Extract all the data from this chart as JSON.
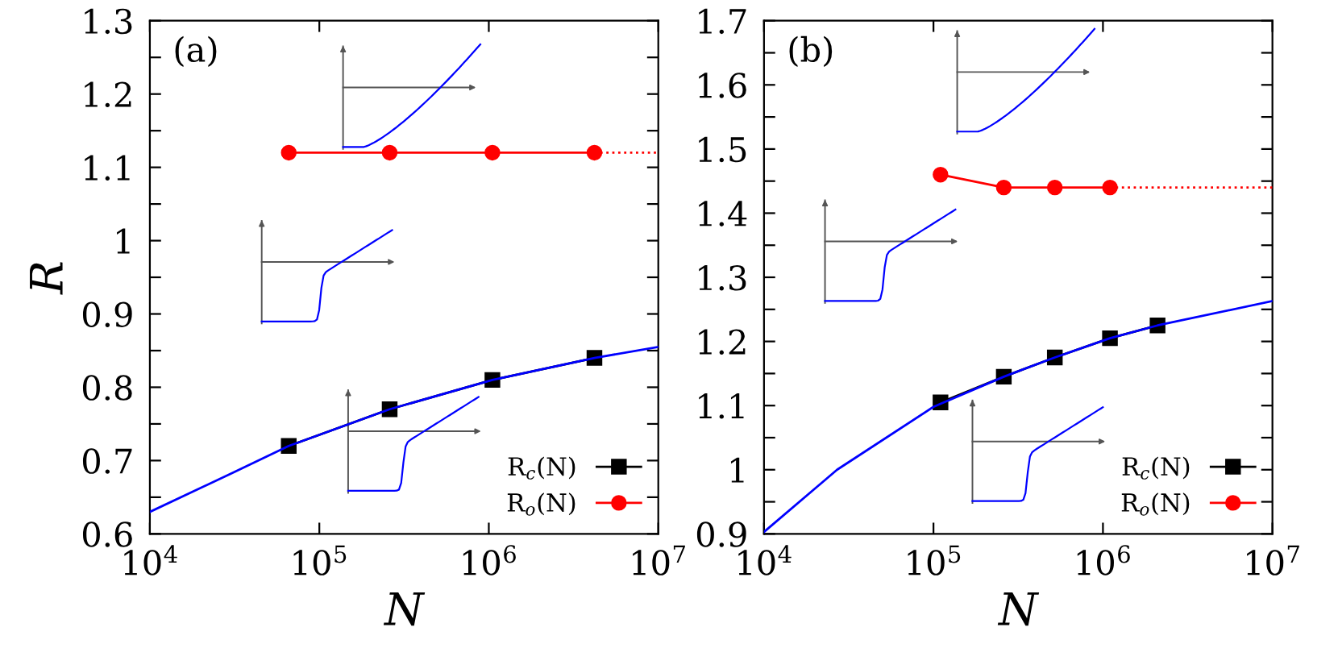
{
  "chart_data": [
    {
      "type": "line",
      "xlabel": "N",
      "ylabel": "R",
      "annotations": [
        "(a)"
      ],
      "log": "x",
      "grid": false,
      "legend": "bottom right",
      "xlim": [
        10000,
        10000000
      ],
      "xticks": [
        {
          "value": 10000,
          "label": "10$^{4}$"
        },
        {
          "value": 100000,
          "label": "10$^{5}$"
        },
        {
          "value": 1000000,
          "label": "10$^{6}$"
        },
        {
          "value": 10000000,
          "label": "10$^{7}$"
        }
      ],
      "ylim": [
        0.6,
        1.3
      ],
      "yticks": [
        0.6,
        {
          "value": 0.65,
          "label": null
        },
        0.7,
        {
          "value": 0.75,
          "label": null
        },
        0.8,
        {
          "value": 0.85,
          "label": null
        },
        0.9,
        {
          "value": 0.95,
          "label": null
        },
        1,
        {
          "value": 1.05,
          "label": null
        },
        1.1,
        {
          "value": 1.15,
          "label": null
        },
        1.2,
        {
          "value": 1.25,
          "label": null
        },
        1.3
      ],
      "series": [
        {
          "color": "#0000ff",
          "marker": "none",
          "line_style": "solid",
          "x": [
            10000,
            30000,
            66000,
            100000,
            260000,
            1050000,
            4200000,
            10000000
          ],
          "values": [
            0.63,
            0.682,
            0.72,
            0.735,
            0.77,
            0.81,
            0.84,
            0.855
          ]
        },
        {
          "name": "R$_{c}$(N)",
          "color": "#000000",
          "marker": "square",
          "line_style": "solid",
          "x": [
            66000,
            260000,
            1050000,
            4200000
          ],
          "values": [
            0.72,
            0.77,
            0.81,
            0.84
          ]
        },
        {
          "name": "R$_{o}$(N)",
          "color": "#ff0000",
          "marker": "circle",
          "line_style": "solid",
          "x": [
            66000,
            260000,
            1050000,
            4200000
          ],
          "values": [
            1.12,
            1.12,
            1.12,
            1.12
          ]
        },
        {
          "color": "#ff0000",
          "marker": "none",
          "line_style": "dotted",
          "x": [
            4200000,
            10000000
          ],
          "values": [
            1.12,
            1.12
          ]
        }
      ]
    },
    {
      "type": "line",
      "xlabel": "N",
      "annotations": [
        "(b)"
      ],
      "log": "x",
      "grid": false,
      "legend": "bottom right",
      "xlim": [
        10000,
        10000000
      ],
      "xticks": [
        {
          "value": 10000,
          "label": "10$^{4}$"
        },
        {
          "value": 100000,
          "label": "10$^{5}$"
        },
        {
          "value": 1000000,
          "label": "10$^{6}$"
        },
        {
          "value": 10000000,
          "label": "10$^{7}$"
        }
      ],
      "ylim": [
        0.9,
        1.7
      ],
      "yticks": [
        0.9,
        {
          "value": 0.95,
          "label": null
        },
        1,
        {
          "value": 1.05,
          "label": null
        },
        1.1,
        {
          "value": 1.15,
          "label": null
        },
        1.2,
        {
          "value": 1.25,
          "label": null
        },
        1.3,
        {
          "value": 1.35,
          "label": null
        },
        1.4,
        {
          "value": 1.45,
          "label": null
        },
        1.5,
        {
          "value": 1.55,
          "label": null
        },
        1.6,
        {
          "value": 1.65,
          "label": null
        },
        1.7
      ],
      "series": [
        {
          "color": "#0000ff",
          "marker": "none",
          "line_style": "solid",
          "x": [
            10000,
            27000,
            100000,
            260000,
            520000,
            1100000,
            2100000,
            10000000
          ],
          "values": [
            0.903,
            1.0,
            1.098,
            1.145,
            1.175,
            1.205,
            1.225,
            1.263
          ]
        },
        {
          "name": "R$_{c}$(N)",
          "color": "#000000",
          "marker": "square",
          "line_style": "solid",
          "x": [
            110000,
            260000,
            520000,
            1100000,
            2100000
          ],
          "values": [
            1.105,
            1.145,
            1.175,
            1.205,
            1.225
          ]
        },
        {
          "name": "R$_{o}$(N)",
          "color": "#ff0000",
          "marker": "circle",
          "line_style": "solid",
          "x": [
            110000,
            260000,
            520000,
            1100000
          ],
          "values": [
            1.46,
            1.44,
            1.44,
            1.44
          ]
        },
        {
          "color": "#ff0000",
          "marker": "none",
          "line_style": "dotted",
          "x": [
            1100000,
            10000000
          ],
          "values": [
            1.44,
            1.44
          ]
        }
      ]
    }
  ]
}
